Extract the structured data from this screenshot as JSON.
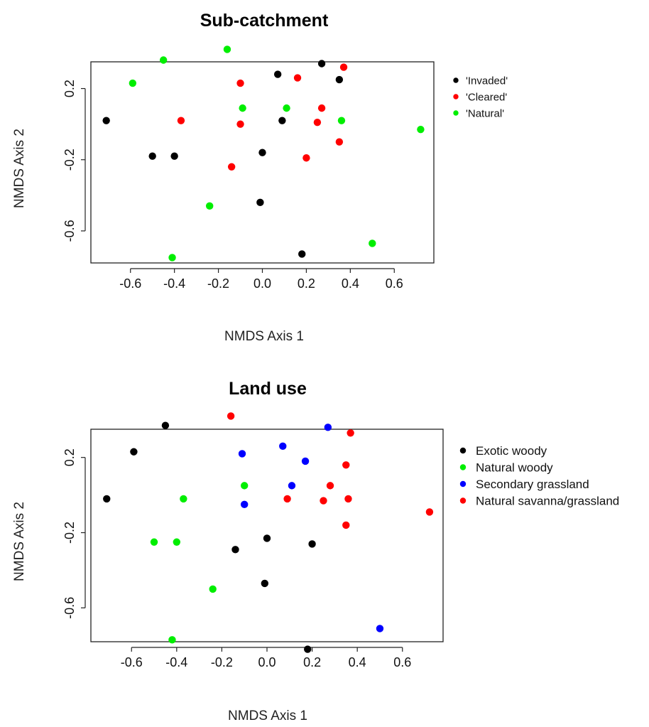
{
  "chart_data": [
    {
      "type": "scatter",
      "title": "Sub-catchment",
      "xlabel": "NMDS Axis 1",
      "ylabel": "NMDS Axis 2",
      "xlim": [
        -0.78,
        0.78
      ],
      "ylim": [
        -0.78,
        0.35
      ],
      "xticks": [
        "-0.6",
        "-0.4",
        "-0.2",
        "0.0",
        "0.2",
        "0.4",
        "0.6"
      ],
      "xtick_values": [
        -0.6,
        -0.4,
        -0.2,
        0.0,
        0.2,
        0.4,
        0.6
      ],
      "yticks": [
        "0.2",
        "-0.2",
        "-0.6"
      ],
      "ytick_values": [
        0.2,
        -0.2,
        -0.6
      ],
      "grid": false,
      "legend": "right",
      "colors": {
        "Invaded": "#000000",
        "Cleared": "#ff0000",
        "Natural": "#00ee00"
      },
      "series": [
        {
          "name": "'Invaded'",
          "color": "#000000",
          "x": [
            -0.71,
            -0.5,
            -0.4,
            0.0,
            0.07,
            0.09,
            0.27,
            0.35,
            -0.01,
            0.18
          ],
          "y": [
            0.02,
            -0.18,
            -0.18,
            -0.16,
            0.28,
            0.02,
            0.34,
            0.25,
            -0.44,
            -0.73
          ]
        },
        {
          "name": "'Cleared'",
          "color": "#ff0000",
          "x": [
            -0.37,
            -0.1,
            -0.1,
            -0.14,
            0.16,
            0.2,
            0.25,
            0.27,
            0.35,
            0.37
          ],
          "y": [
            0.02,
            0.23,
            0.0,
            -0.24,
            0.26,
            -0.19,
            0.01,
            0.09,
            -0.1,
            0.32
          ]
        },
        {
          "name": "'Natural'",
          "color": "#00ee00",
          "x": [
            -0.59,
            -0.45,
            -0.16,
            -0.09,
            0.11,
            0.36,
            0.72,
            -0.24,
            -0.41,
            0.5
          ],
          "y": [
            0.23,
            0.36,
            0.42,
            0.09,
            0.09,
            0.02,
            -0.03,
            -0.46,
            -0.75,
            -0.67
          ]
        }
      ]
    },
    {
      "type": "scatter",
      "title": "Land use",
      "xlabel": "NMDS Axis 1",
      "ylabel": "NMDS Axis 2",
      "xlim": [
        -0.78,
        0.78
      ],
      "ylim": [
        -0.78,
        0.35
      ],
      "xticks": [
        "-0.6",
        "-0.4",
        "-0.2",
        "0.0",
        "0.2",
        "0.4",
        "0.6"
      ],
      "xtick_values": [
        -0.6,
        -0.4,
        -0.2,
        0.0,
        0.2,
        0.4,
        0.6
      ],
      "yticks": [
        "0.2",
        "-0.2",
        "-0.6"
      ],
      "ytick_values": [
        0.2,
        -0.2,
        -0.6
      ],
      "grid": false,
      "legend": "right",
      "colors": {
        "Exotic woody": "#000000",
        "Natural woody": "#00ee00",
        "Secondary grassland": "#0000ff",
        "Natural savanna/grassland": "#ff0000"
      },
      "series": [
        {
          "name": "Exotic woody",
          "color": "#000000",
          "x": [
            -0.71,
            -0.59,
            -0.45,
            -0.14,
            0.0,
            0.2,
            -0.01,
            0.18
          ],
          "y": [
            -0.02,
            0.23,
            0.37,
            -0.29,
            -0.23,
            -0.26,
            -0.47,
            -0.82
          ]
        },
        {
          "name": "Natural woody",
          "color": "#00ee00",
          "x": [
            -0.5,
            -0.4,
            -0.37,
            -0.1,
            -0.24,
            -0.42
          ],
          "y": [
            -0.25,
            -0.25,
            -0.02,
            0.05,
            -0.5,
            -0.77
          ]
        },
        {
          "name": "Secondary grassland",
          "color": "#0000ff",
          "x": [
            -0.11,
            0.07,
            0.17,
            0.27,
            -0.1,
            0.11,
            0.5
          ],
          "y": [
            0.22,
            0.26,
            0.18,
            0.36,
            -0.05,
            0.05,
            -0.71
          ]
        },
        {
          "name": "Natural savanna/grassland",
          "color": "#ff0000",
          "x": [
            -0.16,
            0.37,
            0.35,
            0.09,
            0.25,
            0.28,
            0.36,
            0.35,
            0.72
          ],
          "y": [
            0.42,
            0.33,
            0.16,
            -0.02,
            -0.03,
            0.05,
            -0.02,
            -0.16,
            -0.09
          ]
        }
      ]
    }
  ]
}
